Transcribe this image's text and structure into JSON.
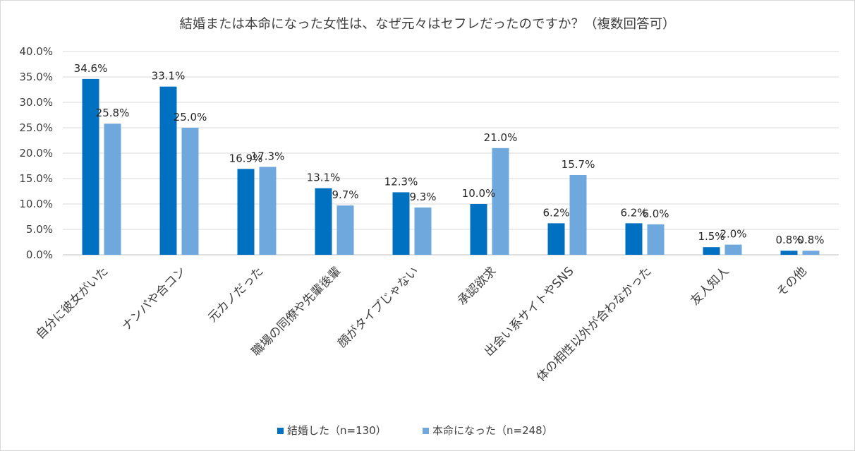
{
  "chart_data": {
    "type": "bar",
    "title": "結婚または本命になった女性は、なぜ元々はセフレだったのですか？（複数回答可）",
    "categories": [
      "自分に彼女がいた",
      "ナンパや合コン",
      "元カノだった",
      "職場の同僚や先輩後輩",
      "顔がタイプじゃない",
      "承認欲求",
      "出会い系サイトやSNS",
      "体の相性以外が合わなかった",
      "友人知人",
      "その他"
    ],
    "series": [
      {
        "name": "結婚した（n=130）",
        "color": "#0070c0",
        "values": [
          34.6,
          33.1,
          16.9,
          13.1,
          12.3,
          10.0,
          6.2,
          6.2,
          1.5,
          0.8
        ],
        "labels": [
          "34.6%",
          "33.1%",
          "16.9%",
          "13.1%",
          "12.3%",
          "10.0%",
          "6.2%",
          "6.2%",
          "1.5%",
          "0.8%"
        ]
      },
      {
        "name": "本命になった（n=248）",
        "color": "#6fa8dc",
        "values": [
          25.8,
          25.0,
          17.3,
          9.7,
          9.3,
          21.0,
          15.7,
          6.0,
          2.0,
          0.8
        ],
        "labels": [
          "25.8%",
          "25.0%",
          "17.3%",
          "9.7%",
          "9.3%",
          "21.0%",
          "15.7%",
          "6.0%",
          "2.0%",
          "0.8%"
        ]
      }
    ],
    "ylim": [
      0,
      40
    ],
    "yticks": [
      0,
      5,
      10,
      15,
      20,
      25,
      30,
      35,
      40
    ],
    "ytick_labels": [
      "0.0%",
      "5.0%",
      "10.0%",
      "15.0%",
      "20.0%",
      "25.0%",
      "30.0%",
      "35.0%",
      "40.0%"
    ],
    "xlabel": "",
    "ylabel": "",
    "grid": true,
    "legend_position": "bottom"
  }
}
